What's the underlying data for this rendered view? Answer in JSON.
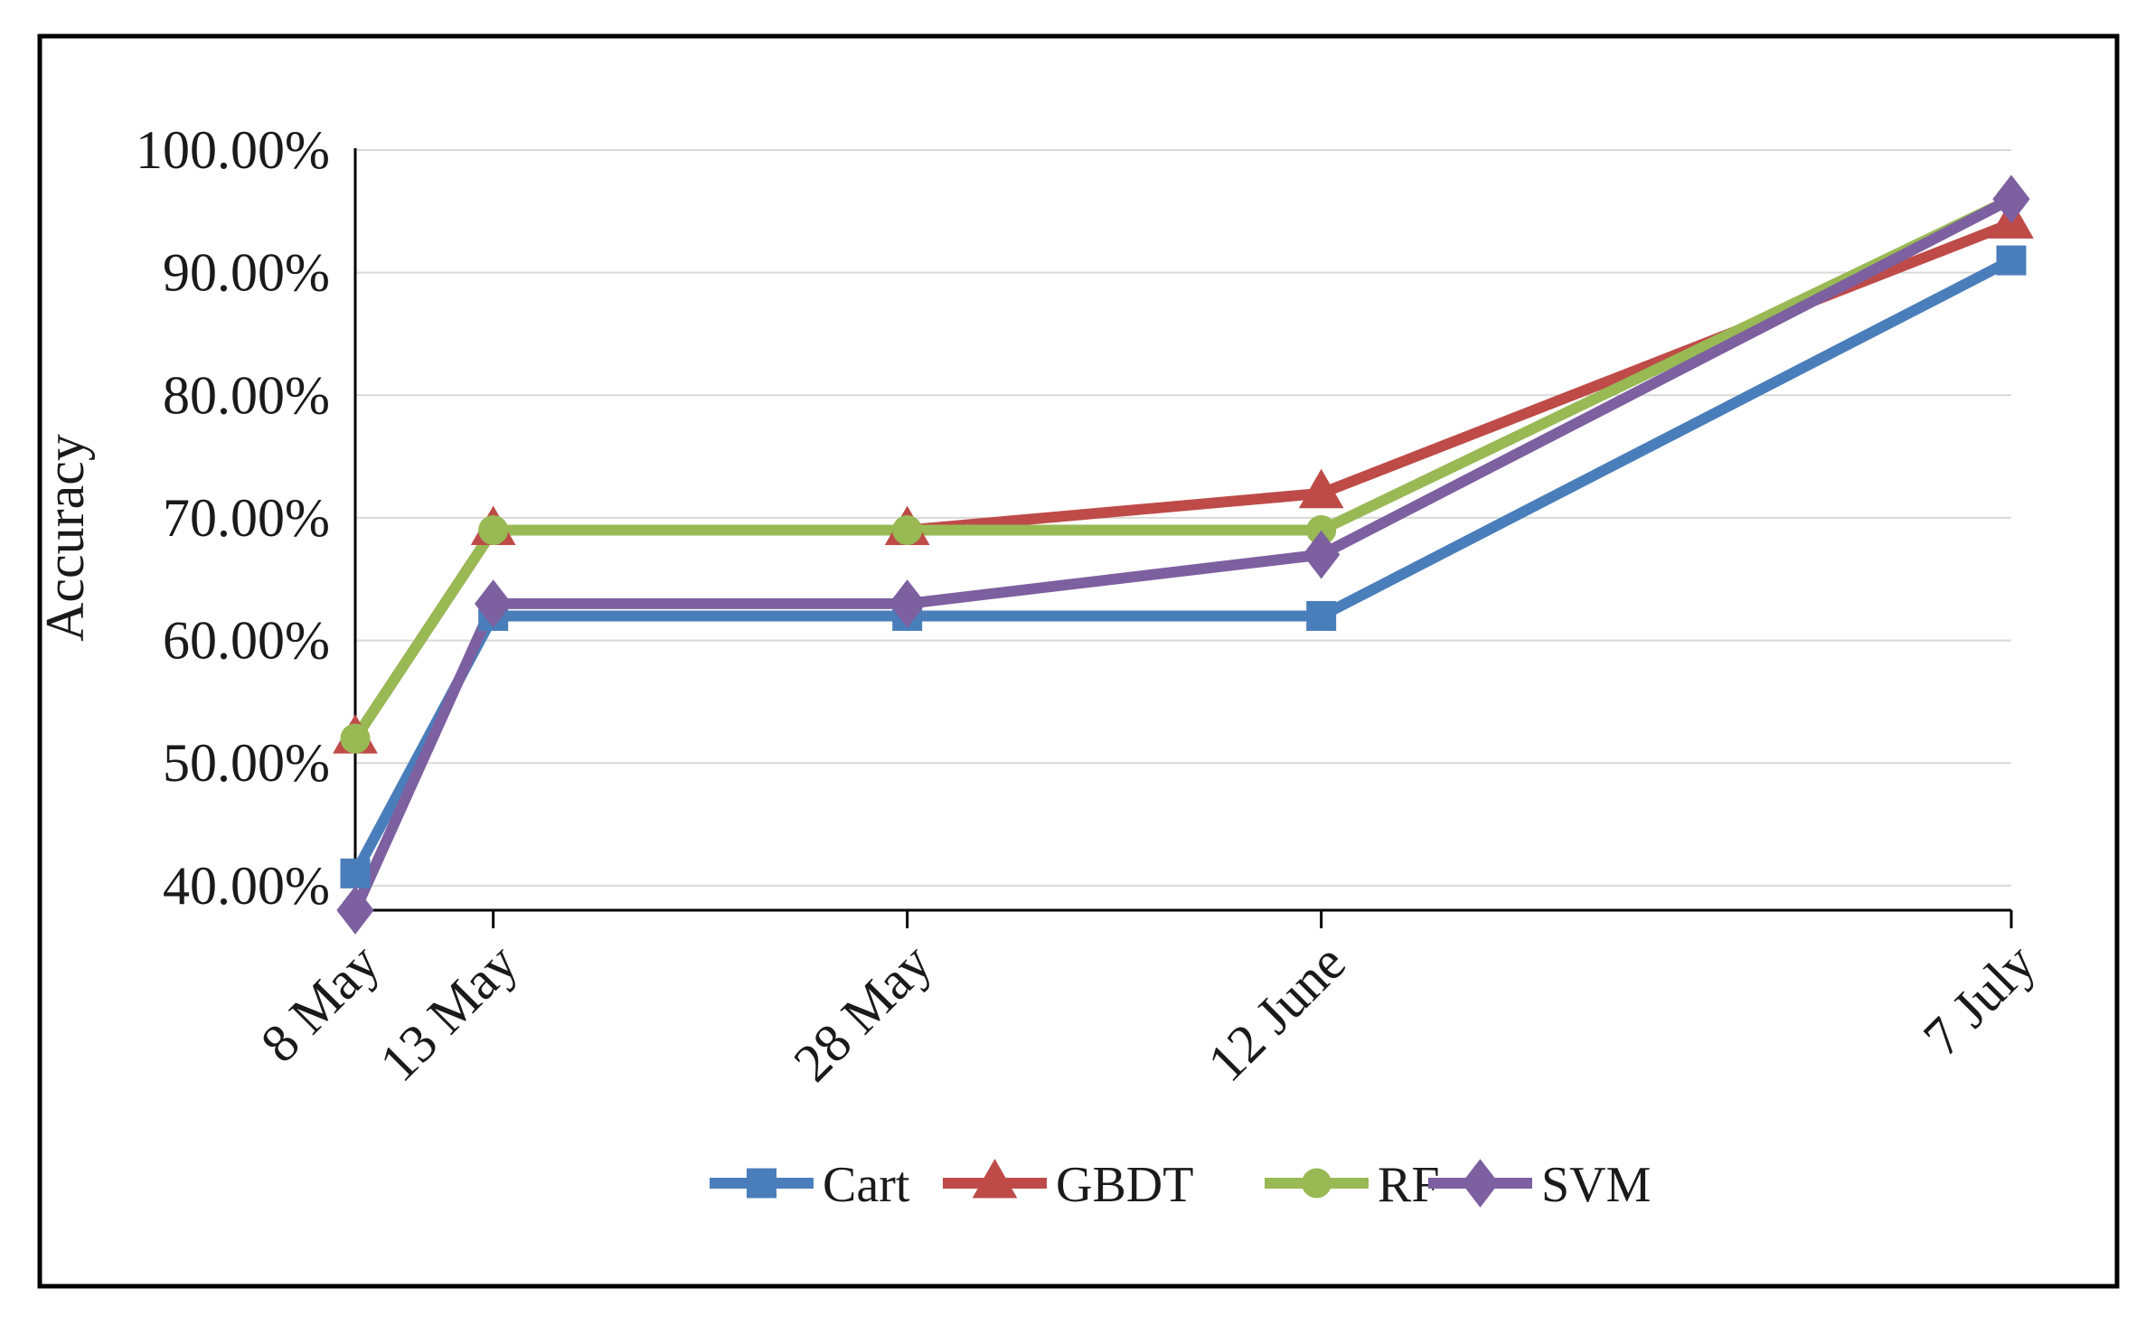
{
  "chart_data": {
    "type": "line",
    "title": "",
    "xlabel": "",
    "ylabel": "Accuracy",
    "categories": [
      "8 May",
      "13 May",
      "28 May",
      "12 June",
      "7 July"
    ],
    "x_days": [
      0,
      5,
      20,
      35,
      60
    ],
    "ylim": [
      0.38,
      1.0
    ],
    "yticks": [
      0.4,
      0.5,
      0.6,
      0.7,
      0.8,
      0.9,
      1.0
    ],
    "ytick_labels": [
      "40.00%",
      "50.00%",
      "60.00%",
      "70.00%",
      "80.00%",
      "90.00%",
      "100.00%"
    ],
    "grid": true,
    "legend_position": "bottom",
    "series": [
      {
        "name": "Cart",
        "marker": "square",
        "color": "#4a7ebb",
        "values": [
          0.41,
          0.62,
          0.62,
          0.62,
          0.91
        ]
      },
      {
        "name": "GBDT",
        "marker": "triangle",
        "color": "#be4b48",
        "values": [
          0.52,
          0.69,
          0.69,
          0.72,
          0.94
        ]
      },
      {
        "name": "RF",
        "marker": "circle",
        "color": "#98b954",
        "values": [
          0.52,
          0.69,
          0.69,
          0.69,
          0.96
        ]
      },
      {
        "name": "SVM",
        "marker": "diamond",
        "color": "#7d60a0",
        "values": [
          0.38,
          0.63,
          0.63,
          0.67,
          0.96
        ]
      }
    ]
  }
}
